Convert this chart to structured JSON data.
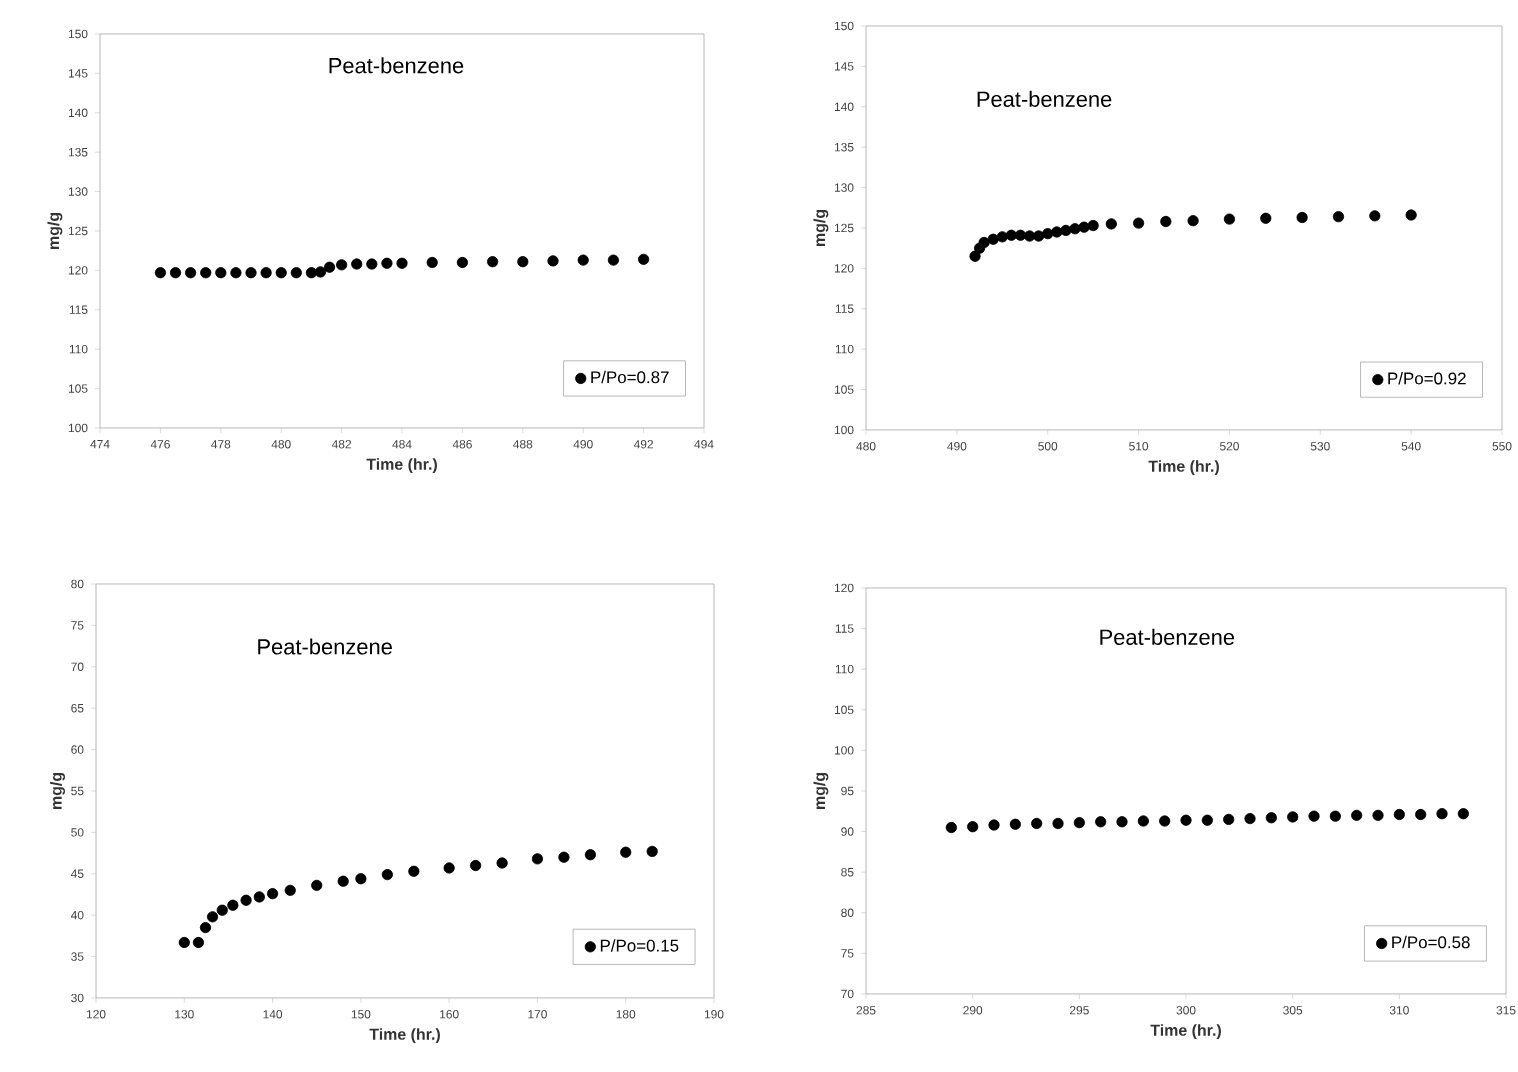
{
  "chart_data": [
    {
      "type": "scatter",
      "title": "Peat-benzene",
      "xlabel": "Time (hr.)",
      "ylabel": "mg/g",
      "xlim": [
        474,
        494
      ],
      "xticks": [
        474,
        476,
        478,
        480,
        482,
        484,
        486,
        488,
        490,
        492,
        494
      ],
      "ylim": [
        100,
        150
      ],
      "yticks": [
        100,
        105,
        110,
        115,
        120,
        125,
        130,
        135,
        140,
        145,
        150
      ],
      "marker": "circle",
      "legend": "bottom right",
      "series": [
        {
          "name": "P/Po=0.87",
          "color": "#000000",
          "x": [
            476,
            476.5,
            477,
            477.5,
            478,
            478.5,
            479,
            479.5,
            480,
            480.5,
            481,
            481.3,
            481.6,
            482,
            482.5,
            483,
            483.5,
            484,
            485,
            486,
            487,
            488,
            489,
            490,
            491,
            492
          ],
          "values": [
            119.7,
            119.7,
            119.7,
            119.7,
            119.7,
            119.7,
            119.7,
            119.7,
            119.7,
            119.7,
            119.7,
            119.8,
            120.4,
            120.7,
            120.8,
            120.8,
            120.9,
            120.9,
            121.0,
            121.0,
            121.1,
            121.1,
            121.2,
            121.3,
            121.3,
            121.4
          ]
        }
      ]
    },
    {
      "type": "scatter",
      "title": "Peat-benzene",
      "xlabel": "Time (hr.)",
      "ylabel": "mg/g",
      "xlim": [
        480,
        550
      ],
      "xticks": [
        480,
        490,
        500,
        510,
        520,
        530,
        540,
        550
      ],
      "ylim": [
        100,
        150
      ],
      "yticks": [
        100,
        105,
        110,
        115,
        120,
        125,
        130,
        135,
        140,
        145,
        150
      ],
      "marker": "circle",
      "legend": "bottom right",
      "series": [
        {
          "name": "P/Po=0.92",
          "color": "#000000",
          "x": [
            492,
            492.5,
            493,
            494,
            495,
            496,
            497,
            498,
            499,
            500,
            501,
            502,
            503,
            504,
            505,
            507,
            510,
            513,
            516,
            520,
            524,
            528,
            532,
            536,
            540
          ],
          "values": [
            121.5,
            122.5,
            123.2,
            123.6,
            123.9,
            124.1,
            124.1,
            124.0,
            124.0,
            124.3,
            124.5,
            124.7,
            124.9,
            125.1,
            125.3,
            125.5,
            125.6,
            125.8,
            125.9,
            126.1,
            126.2,
            126.3,
            126.4,
            126.5,
            126.6
          ]
        }
      ]
    },
    {
      "type": "scatter",
      "title": "Peat-benzene",
      "xlabel": "Time (hr.)",
      "ylabel": "mg/g",
      "xlim": [
        120,
        190
      ],
      "xticks": [
        120,
        130,
        140,
        150,
        160,
        170,
        180,
        190
      ],
      "ylim": [
        30,
        80
      ],
      "yticks": [
        30,
        35,
        40,
        45,
        50,
        55,
        60,
        65,
        70,
        75,
        80
      ],
      "marker": "circle",
      "legend": "bottom right",
      "series": [
        {
          "name": "P/Po=0.15",
          "color": "#000000",
          "x": [
            130,
            131.6,
            132.4,
            133.2,
            134.3,
            135.5,
            137,
            138.5,
            140,
            142,
            145,
            148,
            150,
            153,
            156,
            160,
            163,
            166,
            170,
            173,
            176,
            180,
            183
          ],
          "values": [
            36.7,
            36.7,
            38.5,
            39.8,
            40.6,
            41.2,
            41.8,
            42.2,
            42.6,
            43.0,
            43.6,
            44.1,
            44.4,
            44.9,
            45.3,
            45.7,
            46.0,
            46.3,
            46.8,
            47.0,
            47.3,
            47.6,
            47.7
          ]
        }
      ]
    },
    {
      "type": "scatter",
      "title": "Peat-benzene",
      "xlabel": "Time (hr.)",
      "ylabel": "mg/g",
      "xlim": [
        285,
        315
      ],
      "xticks": [
        285,
        290,
        295,
        300,
        305,
        310,
        315
      ],
      "ylim": [
        70,
        120
      ],
      "yticks": [
        70,
        75,
        80,
        85,
        90,
        95,
        100,
        105,
        110,
        115,
        120
      ],
      "marker": "circle",
      "legend": "bottom right",
      "series": [
        {
          "name": "P/Po=0.58",
          "color": "#000000",
          "x": [
            289,
            290,
            291,
            292,
            293,
            294,
            295,
            296,
            297,
            298,
            299,
            300,
            301,
            302,
            303,
            304,
            305,
            306,
            307,
            308,
            309,
            310,
            311,
            312,
            313
          ],
          "values": [
            90.5,
            90.6,
            90.8,
            90.9,
            91.0,
            91.0,
            91.1,
            91.2,
            91.2,
            91.3,
            91.3,
            91.4,
            91.4,
            91.5,
            91.6,
            91.7,
            91.8,
            91.9,
            91.9,
            92.0,
            92.0,
            92.1,
            92.1,
            92.2,
            92.2
          ]
        }
      ]
    }
  ]
}
